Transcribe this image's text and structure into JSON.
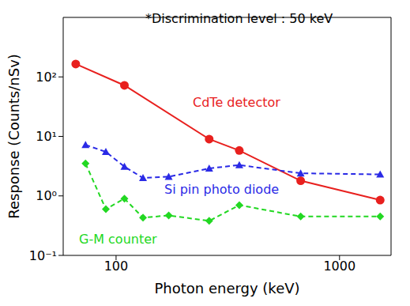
{
  "chart_data": {
    "type": "line",
    "x_label": "Photon energy (keV)",
    "y_label": "Response (Counts/nSv)",
    "annotations": [
      "*Discrimination level : 50 keV"
    ],
    "log": true,
    "xlim": [
      58,
      1700
    ],
    "xticks": [
      100,
      1000
    ],
    "ylim": [
      0.1,
      1000
    ],
    "yticks": [
      {
        "value": 0.1,
        "label": "10⁻¹"
      },
      {
        "value": 1,
        "label": "10⁰"
      },
      {
        "value": 10,
        "label": "10¹"
      },
      {
        "value": 100,
        "label": "10²"
      }
    ],
    "series": [
      {
        "name": "CdTe detector",
        "color": "#e8201e",
        "marker": "circle",
        "line_style": "solid",
        "x": [
          66,
          109,
          261,
          356,
          670,
          1520
        ],
        "values": [
          165,
          72,
          9,
          5.8,
          1.8,
          0.85
        ]
      },
      {
        "name": "Si pin photo diode",
        "color": "#2a2ae6",
        "marker": "triangle",
        "line_style": "dashed",
        "x": [
          73,
          90,
          109,
          132,
          172,
          261,
          356,
          670,
          1520
        ],
        "values": [
          7.2,
          5.5,
          3.1,
          2.0,
          2.1,
          2.9,
          3.3,
          2.4,
          2.3
        ]
      },
      {
        "name": "G-M counter",
        "color": "#22d822",
        "marker": "diamond",
        "line_style": "dashed",
        "x": [
          73,
          90,
          109,
          132,
          172,
          261,
          356,
          670,
          1520
        ],
        "values": [
          3.5,
          0.6,
          0.9,
          0.43,
          0.47,
          0.38,
          0.7,
          0.45,
          0.45
        ]
      }
    ]
  }
}
